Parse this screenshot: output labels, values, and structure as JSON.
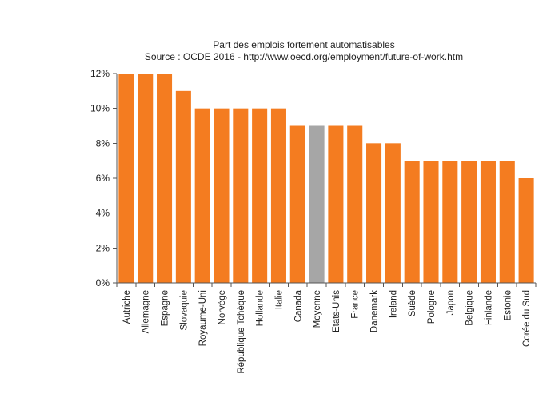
{
  "chart_data": {
    "type": "bar",
    "title": "Part des emplois fortement automatisables",
    "subtitle": "Source : OCDE 2016 - http://www.oecd.org/employment/future-of-work.htm",
    "xlabel": "",
    "ylabel": "",
    "ylim": [
      0,
      12
    ],
    "yticks": [
      0,
      2,
      4,
      6,
      8,
      10,
      12
    ],
    "ytick_labels": [
      "0%",
      "2%",
      "4%",
      "6%",
      "8%",
      "10%",
      "12%"
    ],
    "grid": false,
    "legend": "none",
    "categories": [
      "Autriche",
      "Allemagne",
      "Espagne",
      "Slovaquie",
      "Royaume-Uni",
      "Norvège",
      "République Tchèque",
      "Hollande",
      "Italie",
      "Canada",
      "Moyenne",
      "Etats-Unis",
      "France",
      "Danemark",
      "Ireland",
      "Suède",
      "Pologne",
      "Japon",
      "Belgique",
      "Finlande",
      "Estonie",
      "Corée du Sud"
    ],
    "values": [
      12,
      12,
      12,
      11,
      10,
      10,
      10,
      10,
      10,
      9,
      9,
      9,
      9,
      8,
      8,
      7,
      7,
      7,
      7,
      7,
      7,
      6
    ],
    "colors": {
      "default": "#f47c20",
      "highlight": "#a6a6a6",
      "highlight_category": "Moyenne"
    }
  }
}
